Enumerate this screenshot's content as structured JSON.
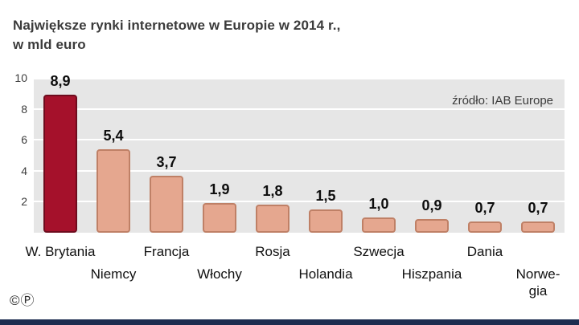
{
  "header": {
    "title_line1": "Największe rynki internetowe w Europie w 2014 r.,",
    "title_line2": "w mld euro"
  },
  "source": "źródło: IAB Europe",
  "footer": {
    "copyright_mark": "©",
    "phono_mark": "Ⓟ"
  },
  "colors": {
    "bar_fill": "#e5a78f",
    "bar_border": "#bf8066",
    "highlight_fill": "#a5112b",
    "highlight_border": "#6e0c1e",
    "plot_bg": "#e6e6e6",
    "footer_bar": "#1d2d50"
  },
  "chart_data": {
    "type": "bar",
    "title": "Największe rynki internetowe w Europie w 2014 r., w mld euro",
    "categories": [
      "W. Brytania",
      "Niemcy",
      "Francja",
      "Włochy",
      "Rosja",
      "Holandia",
      "Szwecja",
      "Hiszpania",
      "Dania",
      "Norwegia"
    ],
    "category_display": [
      "W. Brytania",
      "Niemcy",
      "Francja",
      "Włochy",
      "Rosja",
      "Holandia",
      "Szwecja",
      "Hiszpania",
      "Dania",
      "Norwe-\ngia"
    ],
    "values": [
      8.9,
      5.4,
      3.7,
      1.9,
      1.8,
      1.5,
      1.0,
      0.9,
      0.7,
      0.7
    ],
    "value_labels": [
      "8,9",
      "5,4",
      "3,7",
      "1,9",
      "1,8",
      "1,5",
      "1,0",
      "0,9",
      "0,7",
      "0,7"
    ],
    "ylabel": "",
    "xlabel": "",
    "ylim": [
      0,
      10
    ],
    "yticks": [
      2,
      4,
      6,
      8,
      10
    ],
    "ytick_labels": [
      "2",
      "4",
      "6",
      "8",
      "10"
    ],
    "grid": true,
    "legend": "none",
    "highlight_index": 0,
    "source": "źródło: IAB Europe"
  }
}
